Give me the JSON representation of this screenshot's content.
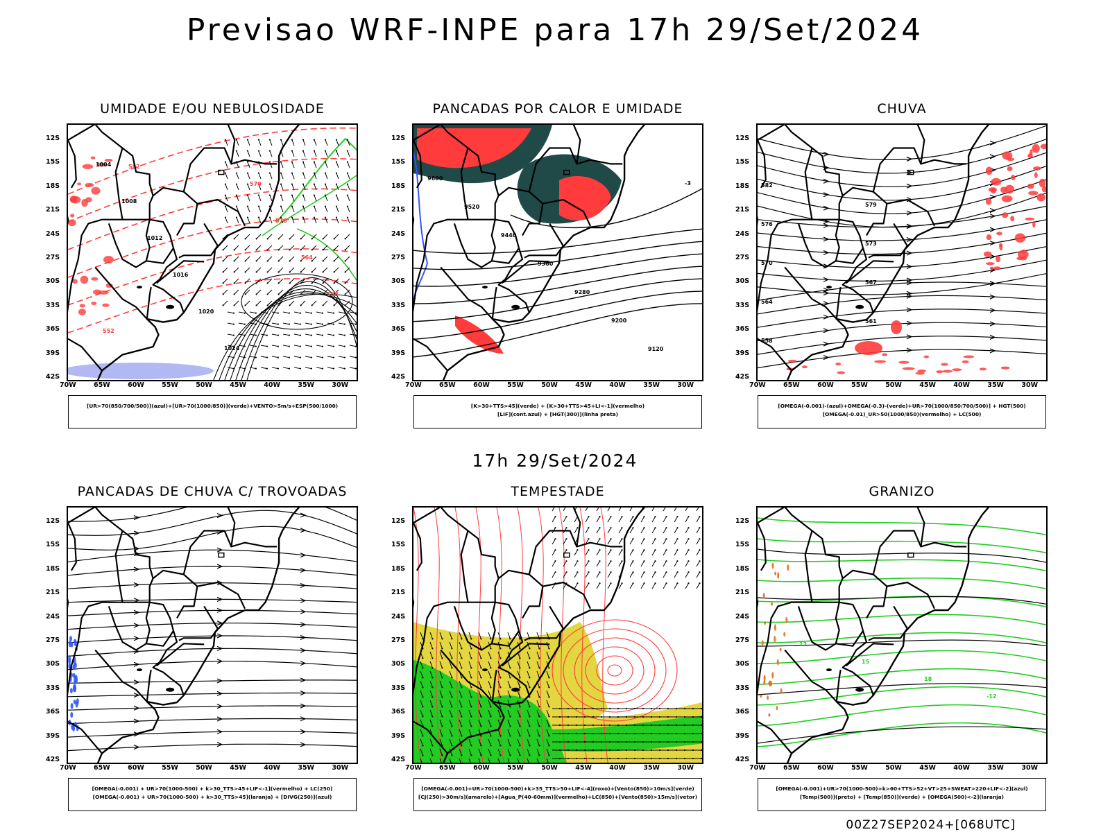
{
  "header": {
    "title": "Previsao WRF-INPE  para 17h 29/Set/2024",
    "mid_date": "17h 29/Set/2024",
    "footer": "00Z27SEP2024+[068UTC]"
  },
  "axes": {
    "lat_labels": [
      "12S",
      "15S",
      "18S",
      "21S",
      "24S",
      "27S",
      "30S",
      "33S",
      "36S",
      "39S",
      "42S"
    ],
    "lon_labels": [
      "70W",
      "65W",
      "60W",
      "55W",
      "50W",
      "45W",
      "40W",
      "35W",
      "30W"
    ]
  },
  "panels": [
    {
      "title": "UMIDADE E/OU NEBULOSIDADE",
      "legend_line1": "[UR>70(850/700/500)](azul)+[UR>70(1000/850)](verde)+VENTO>5m/s+ESP(500/1000)",
      "legend_line2": "",
      "contour_labels": [
        "1004",
        "1008",
        "1012",
        "1016",
        "1020",
        "1024",
        "570",
        "576",
        "564",
        "558",
        "552",
        "582"
      ]
    },
    {
      "title": "PANCADAS POR CALOR E UMIDADE",
      "legend_line1": "[K>30+TTS>45](verde) + [K>30+TTS>45+LI<-1](vermelho)",
      "legend_line2": "[LIF](cont.azul) + [HGT(300)](linha preta)",
      "contour_labels": [
        "9600",
        "9520",
        "9440",
        "9360",
        "9280",
        "9200",
        "9120",
        "-3"
      ]
    },
    {
      "title": "CHUVA",
      "legend_line1": "[OMEGA(-0.001)-(azul)+OMEGA(-0.3)-(verde)+UR>70(1000/850/700/500)] + HGT(500)",
      "legend_line2": "[OMEGA(-0.01)_UR>50(1000/850)(vermelho) + LC(500)",
      "contour_labels": [
        "582",
        "579",
        "576",
        "573",
        "570",
        "567",
        "564",
        "561",
        "558"
      ]
    },
    {
      "title": "PANCADAS DE CHUVA C/ TROVOADAS",
      "legend_line1": "[OMEGA(-0.001) + UR>70(1000-500) + k>30_TTS>45+LIF<-1](vermelho) + LC(250)",
      "legend_line2": "[OMEGA(-0.001) + UR>70(1000-500) + k>30_TTS>45](laranja) + [DIVG(250)](azul)",
      "contour_labels": []
    },
    {
      "title": "TEMPESTADE",
      "legend_line1": "[OMEGA(-0.001)+UR>70(1000-500)+k>35_TTS>50+LIF<-4](roxo)+[Vento(850)>10m/s](verde)",
      "legend_line2": "[CJ(250)>30m/s](amarelo)+[Agua_P(40-60mm)](vermelho)+LC(850)+[Vento(850)>15m/s](vetor)",
      "contour_labels": []
    },
    {
      "title": "GRANIZO",
      "legend_line1": "[OMEGA(-0.001)+UR>70(1000-500)+k>60+TTS>52+VT>25+SWEAT>220+LIF<-2](azul)",
      "legend_line2": "[Temp(500)](preto) + [Temp(850)](verde) + [OMEGA(500)<-2](laranja)",
      "contour_labels": [
        "12",
        "15",
        "18",
        "-12"
      ]
    }
  ],
  "colors": {
    "red": "#ff3b3b",
    "green": "#22cc22",
    "blue": "#3355ff",
    "dark_teal": "#1f4a48",
    "yellow": "#e3d640",
    "lavender": "#aab0f0",
    "orange": "#e07020"
  }
}
